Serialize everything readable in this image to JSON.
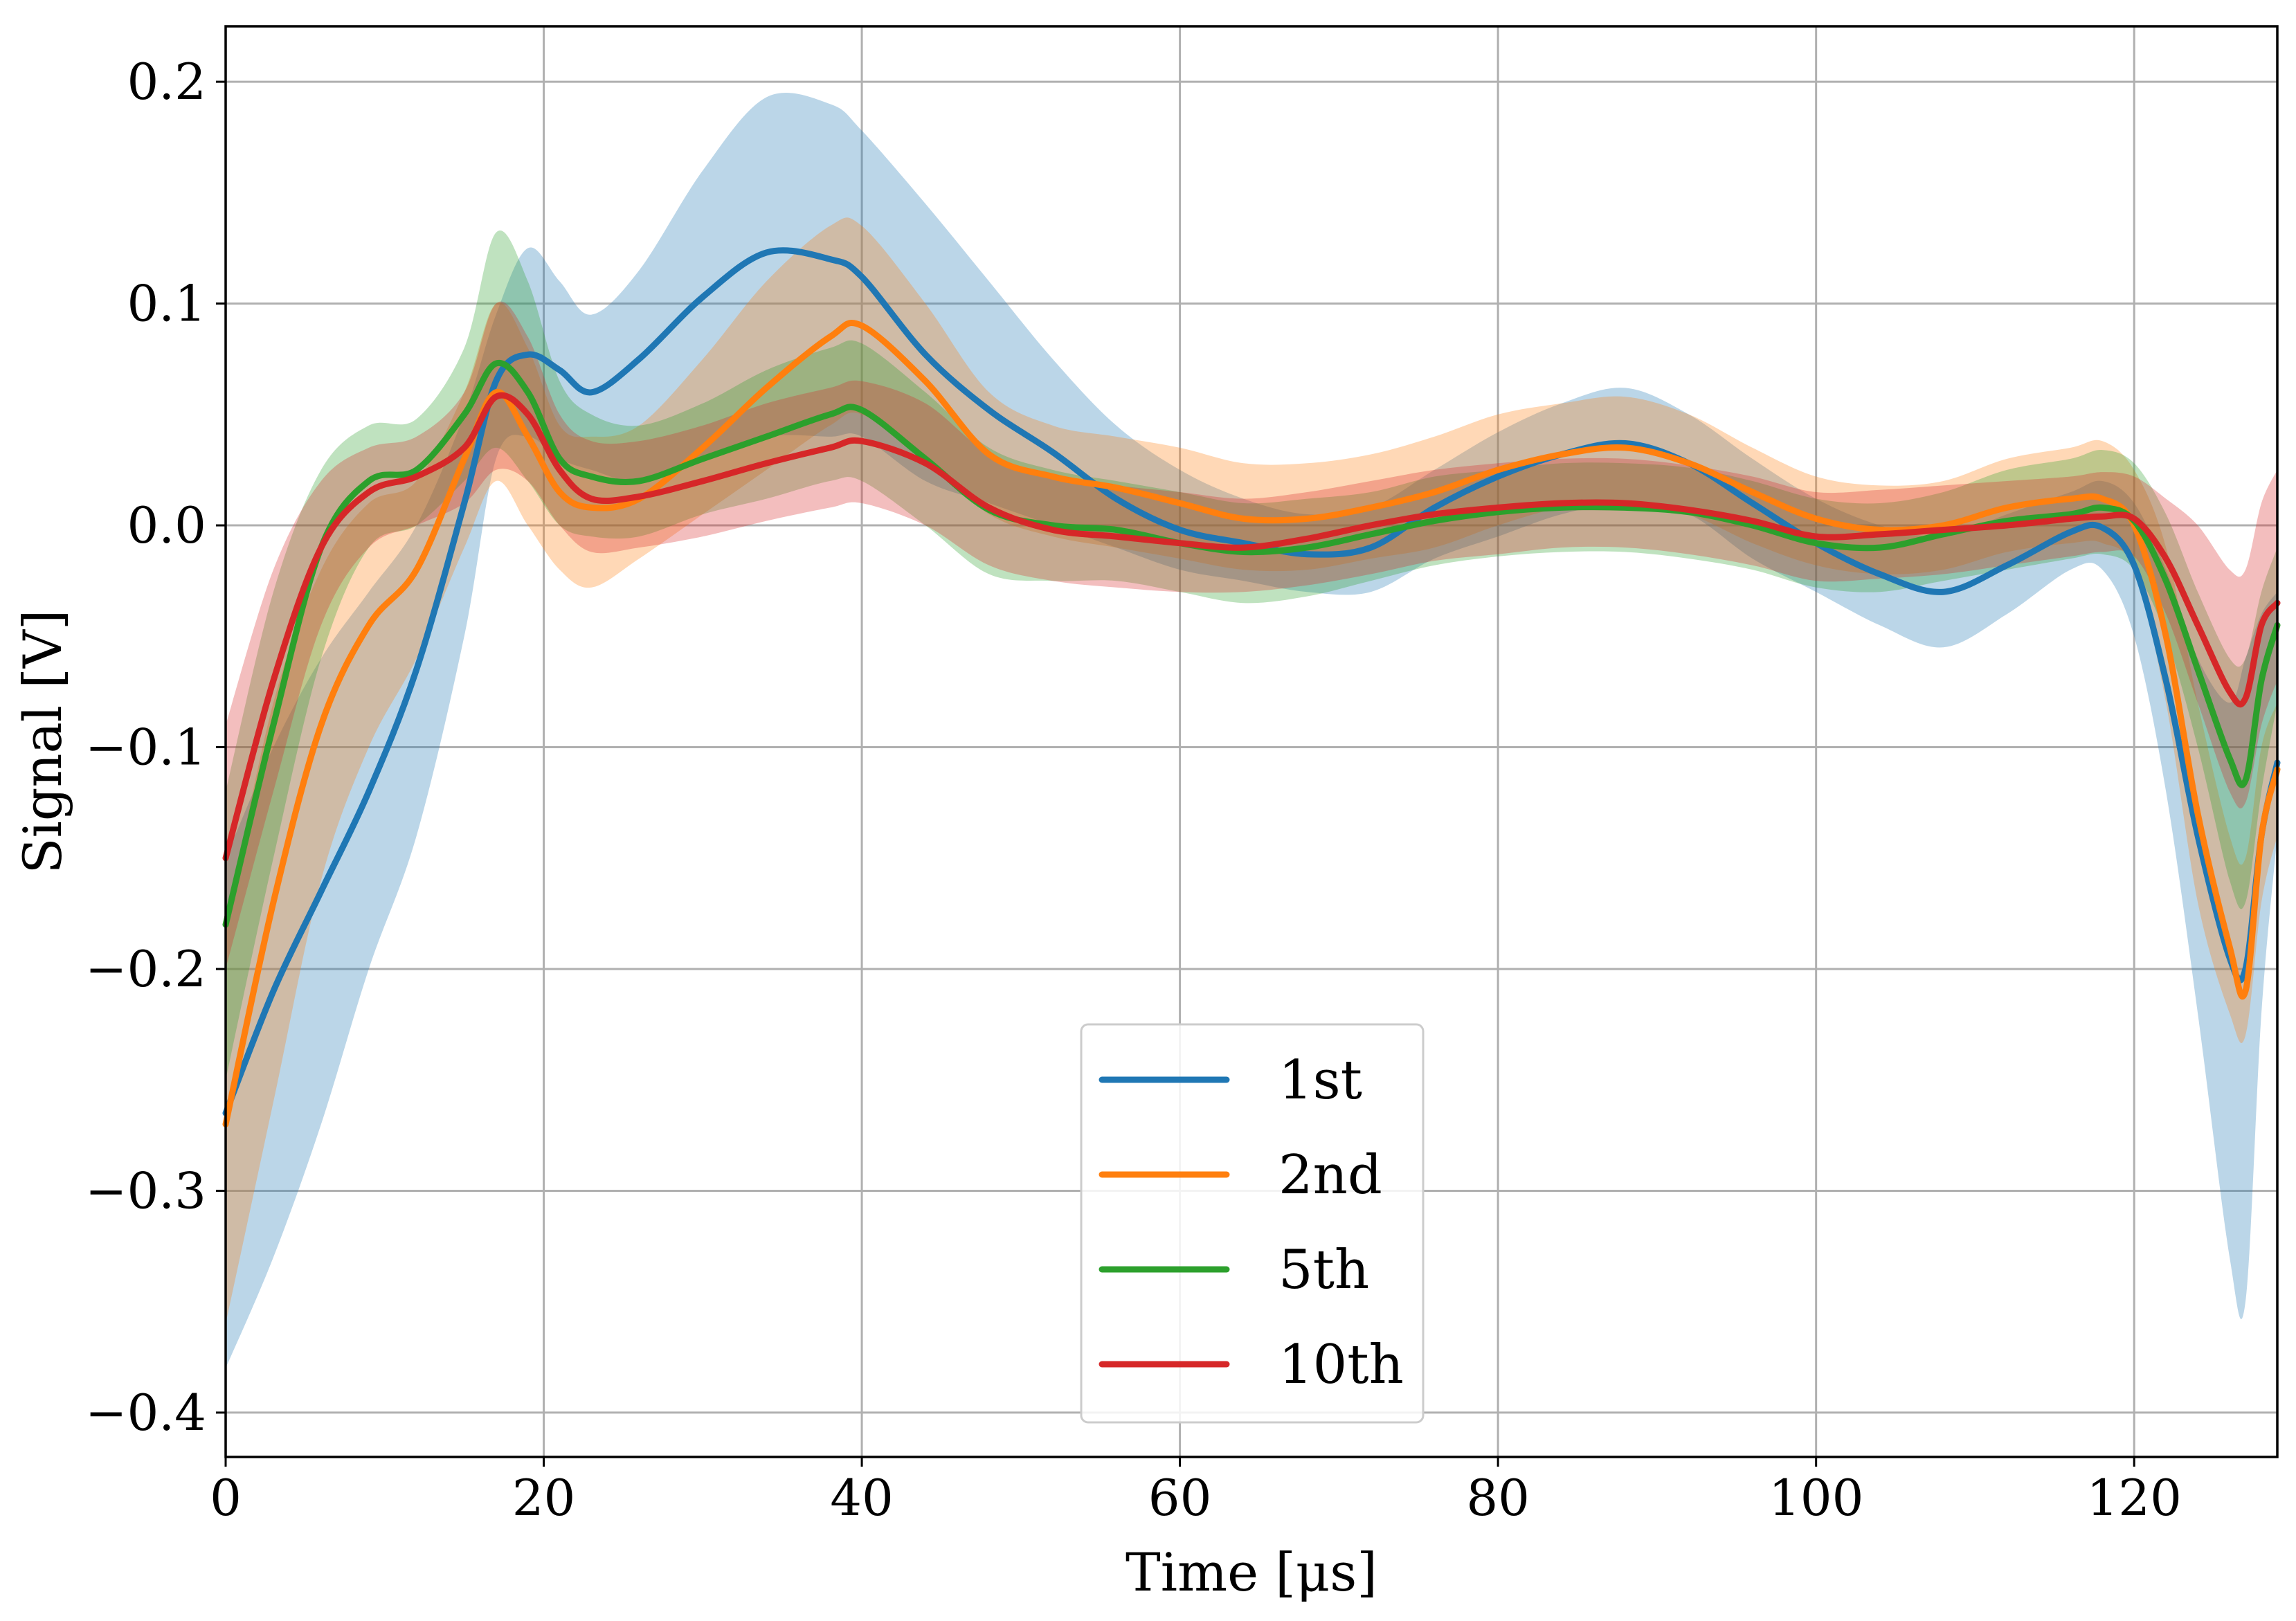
{
  "chart_data": {
    "type": "line",
    "title": "",
    "xlabel": "Time [μs]",
    "ylabel": "Signal [V]",
    "xlim": [
      0,
      129
    ],
    "ylim": [
      -0.42,
      0.225
    ],
    "xticks": [
      0,
      20,
      40,
      60,
      80,
      100,
      120
    ],
    "yticks": [
      0.2,
      0.1,
      0.0,
      -0.1,
      -0.2,
      -0.3,
      -0.4
    ],
    "xtick_labels": [
      "0",
      "20",
      "40",
      "60",
      "80",
      "100",
      "120"
    ],
    "ytick_labels": [
      "0.2",
      "0.1",
      "0.0",
      "−0.1",
      "−0.2",
      "−0.3",
      "−0.4"
    ],
    "grid": true,
    "legend_position": "lower-center",
    "series": [
      {
        "name": "1st",
        "color": "#1f77b4",
        "x": [
          0,
          3,
          6,
          9,
          12,
          15,
          17,
          19,
          21,
          23,
          26,
          30,
          34,
          38,
          40,
          44,
          48,
          52,
          56,
          60,
          64,
          68,
          72,
          76,
          80,
          84,
          88,
          92,
          96,
          100,
          104,
          108,
          112,
          116,
          118,
          120,
          122,
          124,
          126,
          127,
          128,
          129
        ],
        "y": [
          -0.265,
          -0.21,
          -0.165,
          -0.12,
          -0.065,
          0.01,
          0.065,
          0.077,
          0.07,
          0.06,
          0.075,
          0.103,
          0.123,
          0.12,
          0.112,
          0.077,
          0.052,
          0.033,
          0.012,
          -0.002,
          -0.008,
          -0.013,
          -0.01,
          0.008,
          0.022,
          0.032,
          0.037,
          0.028,
          0.01,
          -0.008,
          -0.022,
          -0.03,
          -0.018,
          -0.003,
          -0.001,
          -0.018,
          -0.07,
          -0.14,
          -0.195,
          -0.2,
          -0.14,
          -0.107
        ],
        "lower": [
          -0.38,
          -0.33,
          -0.27,
          -0.2,
          -0.14,
          -0.05,
          0.03,
          0.04,
          0.03,
          0.025,
          0.02,
          0.03,
          0.04,
          0.04,
          0.04,
          0.02,
          0.01,
          0.0,
          -0.01,
          -0.02,
          -0.025,
          -0.03,
          -0.03,
          -0.015,
          -0.005,
          0.005,
          0.01,
          0.005,
          -0.015,
          -0.03,
          -0.045,
          -0.055,
          -0.04,
          -0.02,
          -0.02,
          -0.05,
          -0.12,
          -0.22,
          -0.33,
          -0.35,
          -0.22,
          -0.14
        ],
        "upper": [
          -0.15,
          -0.1,
          -0.06,
          -0.03,
          0.0,
          0.05,
          0.095,
          0.125,
          0.11,
          0.095,
          0.115,
          0.16,
          0.193,
          0.19,
          0.178,
          0.145,
          0.11,
          0.075,
          0.045,
          0.025,
          0.012,
          0.005,
          0.008,
          0.025,
          0.042,
          0.055,
          0.062,
          0.05,
          0.03,
          0.012,
          0.0,
          -0.005,
          0.005,
          0.015,
          0.02,
          0.01,
          -0.02,
          -0.06,
          -0.08,
          -0.06,
          -0.04,
          -0.03
        ]
      },
      {
        "name": "2nd",
        "color": "#ff7f0e",
        "x": [
          0,
          3,
          6,
          9,
          12,
          15,
          17,
          19,
          21,
          23,
          26,
          30,
          34,
          38,
          40,
          44,
          48,
          52,
          56,
          60,
          64,
          68,
          72,
          76,
          80,
          84,
          88,
          92,
          96,
          100,
          104,
          108,
          112,
          116,
          118,
          120,
          122,
          124,
          126,
          127,
          128,
          129
        ],
        "y": [
          -0.27,
          -0.17,
          -0.09,
          -0.045,
          -0.02,
          0.03,
          0.06,
          0.04,
          0.015,
          0.008,
          0.012,
          0.035,
          0.062,
          0.085,
          0.09,
          0.065,
          0.032,
          0.022,
          0.017,
          0.01,
          0.003,
          0.003,
          0.008,
          0.015,
          0.025,
          0.032,
          0.035,
          0.028,
          0.015,
          0.003,
          -0.002,
          0.0,
          0.008,
          0.012,
          0.012,
          0.0,
          -0.05,
          -0.13,
          -0.19,
          -0.21,
          -0.14,
          -0.11
        ],
        "lower": [
          -0.36,
          -0.26,
          -0.16,
          -0.1,
          -0.06,
          -0.01,
          0.02,
          0.0,
          -0.02,
          -0.028,
          -0.015,
          0.005,
          0.025,
          0.045,
          0.05,
          0.03,
          0.005,
          -0.005,
          -0.01,
          -0.015,
          -0.02,
          -0.02,
          -0.015,
          -0.01,
          0.0,
          0.008,
          0.01,
          0.005,
          -0.008,
          -0.018,
          -0.022,
          -0.02,
          -0.012,
          -0.008,
          -0.008,
          -0.02,
          -0.08,
          -0.17,
          -0.22,
          -0.23,
          -0.17,
          -0.14
        ],
        "upper": [
          -0.18,
          -0.08,
          -0.02,
          0.01,
          0.02,
          0.06,
          0.1,
          0.08,
          0.045,
          0.04,
          0.045,
          0.075,
          0.11,
          0.135,
          0.135,
          0.1,
          0.06,
          0.045,
          0.04,
          0.035,
          0.028,
          0.028,
          0.032,
          0.04,
          0.05,
          0.055,
          0.058,
          0.05,
          0.035,
          0.022,
          0.018,
          0.02,
          0.03,
          0.035,
          0.038,
          0.025,
          -0.01,
          -0.08,
          -0.14,
          -0.15,
          -0.1,
          -0.08
        ]
      },
      {
        "name": "5th",
        "color": "#2ca02c",
        "x": [
          0,
          3,
          6,
          9,
          12,
          15,
          17,
          19,
          21,
          23,
          26,
          30,
          34,
          38,
          40,
          44,
          48,
          52,
          56,
          60,
          64,
          68,
          72,
          76,
          80,
          84,
          88,
          92,
          96,
          100,
          104,
          108,
          112,
          116,
          118,
          120,
          122,
          124,
          126,
          127,
          128,
          129
        ],
        "y": [
          -0.18,
          -0.09,
          -0.01,
          0.02,
          0.025,
          0.05,
          0.073,
          0.06,
          0.03,
          0.022,
          0.02,
          0.03,
          0.04,
          0.05,
          0.052,
          0.03,
          0.007,
          0.0,
          -0.002,
          -0.008,
          -0.012,
          -0.01,
          -0.004,
          0.002,
          0.006,
          0.008,
          0.008,
          0.006,
          0.0,
          -0.008,
          -0.01,
          -0.004,
          0.002,
          0.005,
          0.008,
          0.002,
          -0.025,
          -0.065,
          -0.105,
          -0.115,
          -0.07,
          -0.045
        ],
        "lower": [
          -0.25,
          -0.15,
          -0.06,
          -0.01,
          0.0,
          0.02,
          0.035,
          0.02,
          0.0,
          -0.005,
          -0.005,
          0.005,
          0.012,
          0.02,
          0.02,
          0.0,
          -0.022,
          -0.025,
          -0.025,
          -0.03,
          -0.035,
          -0.032,
          -0.025,
          -0.018,
          -0.014,
          -0.012,
          -0.012,
          -0.015,
          -0.02,
          -0.028,
          -0.03,
          -0.025,
          -0.02,
          -0.015,
          -0.013,
          -0.02,
          -0.05,
          -0.1,
          -0.16,
          -0.17,
          -0.12,
          -0.08
        ],
        "upper": [
          -0.12,
          -0.03,
          0.025,
          0.045,
          0.048,
          0.08,
          0.132,
          0.11,
          0.065,
          0.05,
          0.045,
          0.055,
          0.07,
          0.08,
          0.082,
          0.06,
          0.035,
          0.025,
          0.02,
          0.015,
          0.01,
          0.012,
          0.015,
          0.022,
          0.025,
          0.028,
          0.028,
          0.026,
          0.02,
          0.012,
          0.01,
          0.015,
          0.025,
          0.03,
          0.034,
          0.028,
          0.005,
          -0.03,
          -0.06,
          -0.06,
          -0.03,
          -0.01
        ]
      },
      {
        "name": "10th",
        "color": "#d62728",
        "x": [
          0,
          3,
          6,
          9,
          12,
          15,
          17,
          19,
          21,
          23,
          26,
          30,
          34,
          38,
          40,
          44,
          48,
          52,
          56,
          60,
          64,
          68,
          72,
          76,
          80,
          84,
          88,
          92,
          96,
          100,
          104,
          108,
          112,
          116,
          118,
          120,
          122,
          124,
          126,
          127,
          128,
          129
        ],
        "y": [
          -0.15,
          -0.07,
          -0.01,
          0.015,
          0.022,
          0.035,
          0.058,
          0.05,
          0.025,
          0.012,
          0.013,
          0.02,
          0.028,
          0.035,
          0.038,
          0.028,
          0.008,
          -0.002,
          -0.005,
          -0.008,
          -0.01,
          -0.006,
          0.0,
          0.005,
          0.008,
          0.01,
          0.01,
          0.007,
          0.002,
          -0.005,
          -0.004,
          -0.002,
          0.0,
          0.003,
          0.004,
          0.003,
          -0.015,
          -0.045,
          -0.075,
          -0.078,
          -0.045,
          -0.035
        ],
        "lower": [
          -0.2,
          -0.12,
          -0.045,
          -0.01,
          0.0,
          0.01,
          0.025,
          0.02,
          0.0,
          -0.012,
          -0.01,
          -0.005,
          0.002,
          0.008,
          0.01,
          0.0,
          -0.018,
          -0.025,
          -0.028,
          -0.03,
          -0.03,
          -0.027,
          -0.022,
          -0.016,
          -0.013,
          -0.01,
          -0.01,
          -0.013,
          -0.018,
          -0.025,
          -0.024,
          -0.022,
          -0.018,
          -0.014,
          -0.012,
          -0.014,
          -0.04,
          -0.08,
          -0.12,
          -0.125,
          -0.09,
          -0.07
        ],
        "upper": [
          -0.09,
          -0.02,
          0.02,
          0.035,
          0.04,
          0.06,
          0.1,
          0.085,
          0.05,
          0.038,
          0.038,
          0.045,
          0.055,
          0.062,
          0.065,
          0.055,
          0.032,
          0.022,
          0.018,
          0.015,
          0.012,
          0.015,
          0.02,
          0.025,
          0.028,
          0.03,
          0.03,
          0.027,
          0.022,
          0.015,
          0.016,
          0.018,
          0.02,
          0.022,
          0.024,
          0.022,
          0.012,
          0.0,
          -0.02,
          -0.02,
          0.01,
          0.025
        ]
      }
    ]
  }
}
